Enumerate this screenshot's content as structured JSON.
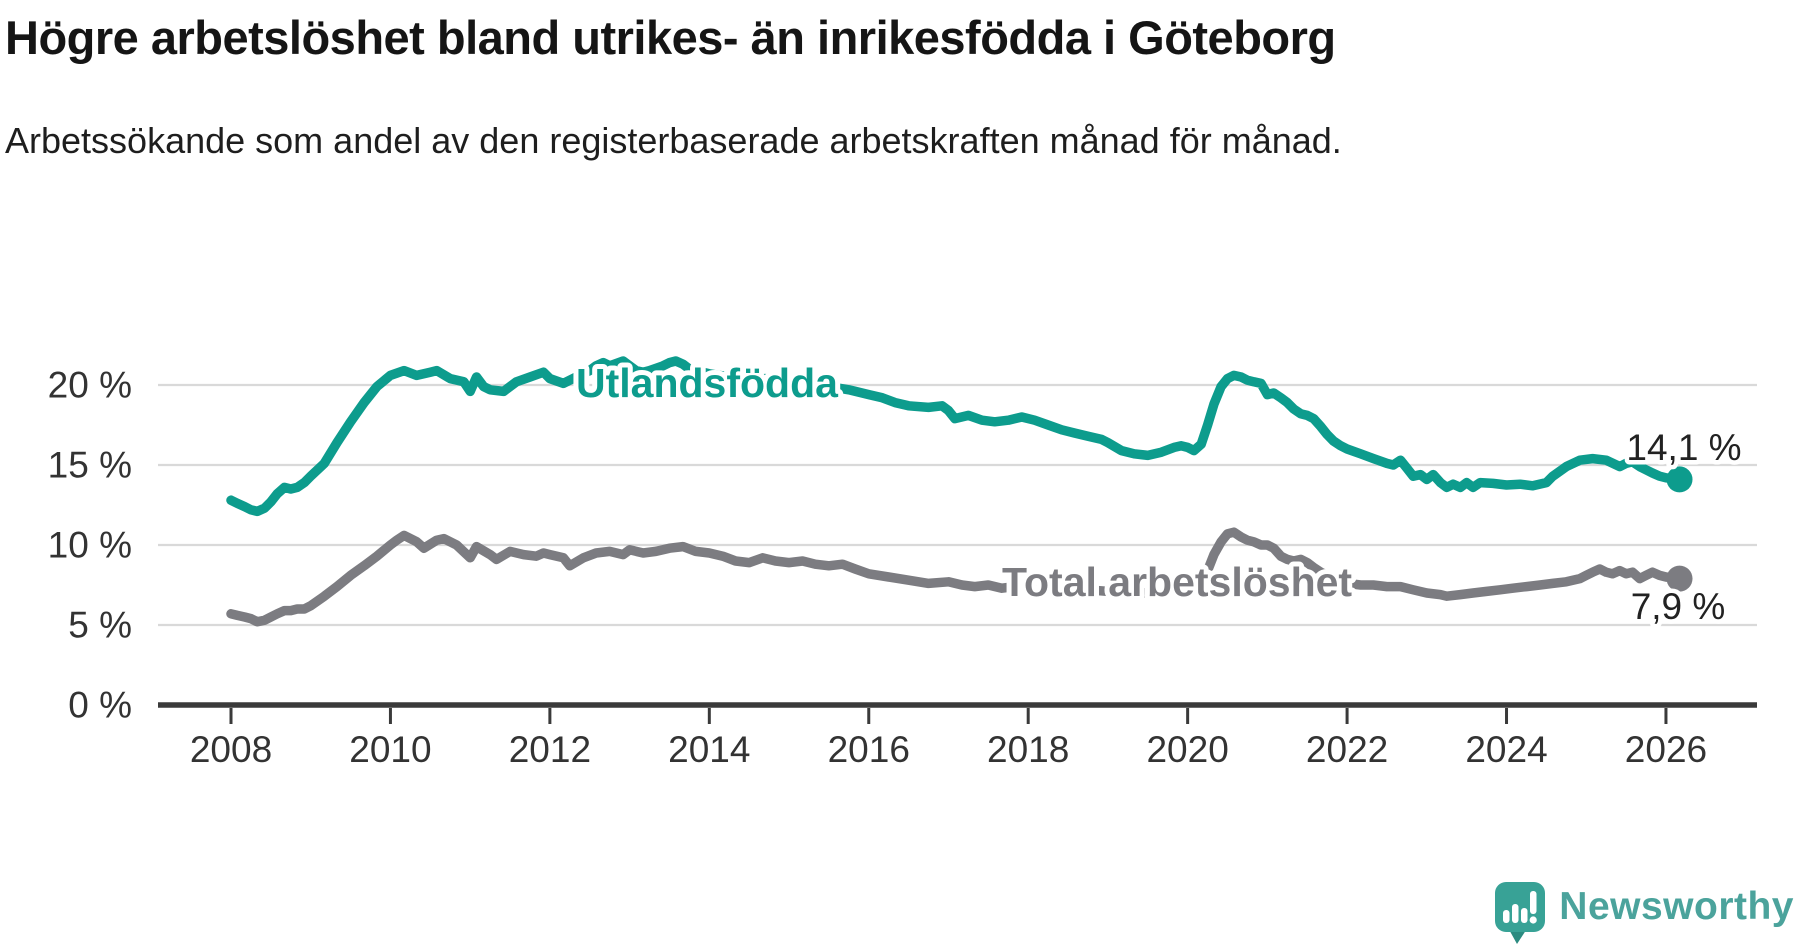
{
  "header": {
    "title": "Högre arbetslöshet bland utrikes- än inrikesfödda i Göteborg",
    "subtitle": "Arbetssökande som andel av den registerbaserade arbetskraften månad för månad."
  },
  "chart_data": {
    "type": "line",
    "unit": "%",
    "grid": "horizontal",
    "x_axis": {
      "ticks": [
        {
          "v": 2008,
          "label": "2008"
        },
        {
          "v": 2010,
          "label": "2010"
        },
        {
          "v": 2012,
          "label": "2012"
        },
        {
          "v": 2014,
          "label": "2014"
        },
        {
          "v": 2016,
          "label": "2016"
        },
        {
          "v": 2018,
          "label": "2018"
        },
        {
          "v": 2020,
          "label": "2020"
        },
        {
          "v": 2022,
          "label": "2022"
        },
        {
          "v": 2024,
          "label": "2024"
        },
        {
          "v": 2026,
          "label": "2026"
        }
      ],
      "range": [
        2007.1,
        2027.1
      ]
    },
    "y_axis": {
      "ticks": [
        {
          "v": 0,
          "label": "0 %"
        },
        {
          "v": 5,
          "label": "5 %"
        },
        {
          "v": 10,
          "label": "10 %"
        },
        {
          "v": 15,
          "label": "15 %"
        },
        {
          "v": 20,
          "label": "20 %"
        }
      ],
      "gridlines": [
        5,
        10,
        15,
        20
      ],
      "range": [
        0,
        22
      ]
    },
    "series": [
      {
        "name": "Utlandsfödda",
        "color": "#0d9c8d",
        "end_label": "14,1 %",
        "points": [
          [
            2008.0,
            12.8
          ],
          [
            2008.08,
            12.6
          ],
          [
            2008.17,
            12.4
          ],
          [
            2008.25,
            12.2
          ],
          [
            2008.33,
            12.1
          ],
          [
            2008.42,
            12.3
          ],
          [
            2008.5,
            12.7
          ],
          [
            2008.58,
            13.2
          ],
          [
            2008.67,
            13.6
          ],
          [
            2008.75,
            13.5
          ],
          [
            2008.83,
            13.6
          ],
          [
            2008.92,
            13.9
          ],
          [
            2009.0,
            14.3
          ],
          [
            2009.17,
            15.1
          ],
          [
            2009.33,
            16.4
          ],
          [
            2009.5,
            17.7
          ],
          [
            2009.67,
            18.9
          ],
          [
            2009.83,
            19.9
          ],
          [
            2010.0,
            20.6
          ],
          [
            2010.17,
            20.9
          ],
          [
            2010.33,
            20.6
          ],
          [
            2010.5,
            20.8
          ],
          [
            2010.58,
            20.9
          ],
          [
            2010.75,
            20.4
          ],
          [
            2010.92,
            20.2
          ],
          [
            2011.0,
            19.6
          ],
          [
            2011.08,
            20.5
          ],
          [
            2011.17,
            19.9
          ],
          [
            2011.25,
            19.7
          ],
          [
            2011.42,
            19.6
          ],
          [
            2011.58,
            20.2
          ],
          [
            2011.75,
            20.5
          ],
          [
            2011.92,
            20.8
          ],
          [
            2012.0,
            20.4
          ],
          [
            2012.17,
            20.1
          ],
          [
            2012.33,
            20.5
          ],
          [
            2012.5,
            20.9
          ],
          [
            2012.58,
            21.2
          ],
          [
            2012.67,
            21.4
          ],
          [
            2012.75,
            21.2
          ],
          [
            2012.92,
            21.5
          ],
          [
            2013.0,
            21.2
          ],
          [
            2013.08,
            20.9
          ],
          [
            2013.17,
            20.8
          ],
          [
            2013.25,
            20.9
          ],
          [
            2013.42,
            21.2
          ],
          [
            2013.5,
            21.4
          ],
          [
            2013.58,
            21.5
          ],
          [
            2013.67,
            21.3
          ],
          [
            2013.75,
            21.0
          ],
          [
            2013.83,
            20.9
          ],
          [
            2014.0,
            20.7
          ],
          [
            2014.25,
            20.5
          ],
          [
            2014.5,
            20.4
          ],
          [
            2014.75,
            20.4
          ],
          [
            2015.0,
            20.2
          ],
          [
            2015.25,
            20.0
          ],
          [
            2015.5,
            19.9
          ],
          [
            2015.75,
            19.7
          ],
          [
            2016.0,
            19.4
          ],
          [
            2016.17,
            19.2
          ],
          [
            2016.33,
            18.9
          ],
          [
            2016.5,
            18.7
          ],
          [
            2016.75,
            18.6
          ],
          [
            2016.92,
            18.7
          ],
          [
            2017.0,
            18.4
          ],
          [
            2017.08,
            17.9
          ],
          [
            2017.25,
            18.1
          ],
          [
            2017.42,
            17.8
          ],
          [
            2017.58,
            17.7
          ],
          [
            2017.75,
            17.8
          ],
          [
            2017.92,
            18.0
          ],
          [
            2018.08,
            17.8
          ],
          [
            2018.25,
            17.5
          ],
          [
            2018.42,
            17.2
          ],
          [
            2018.58,
            17.0
          ],
          [
            2018.75,
            16.8
          ],
          [
            2018.92,
            16.6
          ],
          [
            2019.0,
            16.4
          ],
          [
            2019.17,
            15.9
          ],
          [
            2019.33,
            15.7
          ],
          [
            2019.5,
            15.6
          ],
          [
            2019.67,
            15.8
          ],
          [
            2019.83,
            16.1
          ],
          [
            2019.92,
            16.2
          ],
          [
            2020.0,
            16.1
          ],
          [
            2020.08,
            15.9
          ],
          [
            2020.17,
            16.3
          ],
          [
            2020.25,
            17.5
          ],
          [
            2020.33,
            18.8
          ],
          [
            2020.42,
            19.9
          ],
          [
            2020.5,
            20.4
          ],
          [
            2020.58,
            20.6
          ],
          [
            2020.67,
            20.5
          ],
          [
            2020.75,
            20.3
          ],
          [
            2020.83,
            20.2
          ],
          [
            2020.92,
            20.1
          ],
          [
            2021.0,
            19.4
          ],
          [
            2021.08,
            19.5
          ],
          [
            2021.17,
            19.2
          ],
          [
            2021.25,
            18.9
          ],
          [
            2021.33,
            18.5
          ],
          [
            2021.42,
            18.2
          ],
          [
            2021.5,
            18.1
          ],
          [
            2021.58,
            17.9
          ],
          [
            2021.67,
            17.4
          ],
          [
            2021.75,
            16.9
          ],
          [
            2021.83,
            16.5
          ],
          [
            2021.92,
            16.2
          ],
          [
            2022.0,
            16.0
          ],
          [
            2022.17,
            15.7
          ],
          [
            2022.33,
            15.4
          ],
          [
            2022.5,
            15.1
          ],
          [
            2022.58,
            15.0
          ],
          [
            2022.67,
            15.3
          ],
          [
            2022.75,
            14.8
          ],
          [
            2022.83,
            14.3
          ],
          [
            2022.92,
            14.4
          ],
          [
            2023.0,
            14.1
          ],
          [
            2023.08,
            14.4
          ],
          [
            2023.17,
            13.9
          ],
          [
            2023.25,
            13.6
          ],
          [
            2023.33,
            13.8
          ],
          [
            2023.42,
            13.6
          ],
          [
            2023.5,
            13.9
          ],
          [
            2023.58,
            13.6
          ],
          [
            2023.67,
            13.9
          ],
          [
            2023.83,
            13.85
          ],
          [
            2024.0,
            13.75
          ],
          [
            2024.17,
            13.8
          ],
          [
            2024.33,
            13.7
          ],
          [
            2024.5,
            13.9
          ],
          [
            2024.58,
            14.3
          ],
          [
            2024.75,
            14.9
          ],
          [
            2024.92,
            15.3
          ],
          [
            2025.08,
            15.4
          ],
          [
            2025.25,
            15.3
          ],
          [
            2025.42,
            14.9
          ],
          [
            2025.5,
            15.1
          ],
          [
            2025.58,
            15.2
          ],
          [
            2025.67,
            14.9
          ],
          [
            2025.75,
            14.7
          ],
          [
            2025.83,
            14.5
          ],
          [
            2025.92,
            14.3
          ],
          [
            2026.0,
            14.2
          ],
          [
            2026.17,
            14.1
          ]
        ]
      },
      {
        "name": "Total arbetslöshet",
        "color": "#7c7c81",
        "end_label": "7,9 %",
        "points": [
          [
            2008.0,
            5.7
          ],
          [
            2008.08,
            5.6
          ],
          [
            2008.17,
            5.5
          ],
          [
            2008.25,
            5.4
          ],
          [
            2008.33,
            5.2
          ],
          [
            2008.42,
            5.3
          ],
          [
            2008.5,
            5.5
          ],
          [
            2008.58,
            5.7
          ],
          [
            2008.67,
            5.9
          ],
          [
            2008.75,
            5.9
          ],
          [
            2008.83,
            6.0
          ],
          [
            2008.92,
            6.0
          ],
          [
            2009.0,
            6.2
          ],
          [
            2009.17,
            6.8
          ],
          [
            2009.33,
            7.4
          ],
          [
            2009.5,
            8.1
          ],
          [
            2009.67,
            8.7
          ],
          [
            2009.83,
            9.3
          ],
          [
            2010.0,
            10.0
          ],
          [
            2010.08,
            10.3
          ],
          [
            2010.17,
            10.6
          ],
          [
            2010.33,
            10.2
          ],
          [
            2010.42,
            9.8
          ],
          [
            2010.58,
            10.3
          ],
          [
            2010.67,
            10.4
          ],
          [
            2010.83,
            10.0
          ],
          [
            2011.0,
            9.2
          ],
          [
            2011.08,
            9.9
          ],
          [
            2011.25,
            9.4
          ],
          [
            2011.33,
            9.1
          ],
          [
            2011.5,
            9.6
          ],
          [
            2011.67,
            9.4
          ],
          [
            2011.83,
            9.3
          ],
          [
            2011.92,
            9.5
          ],
          [
            2012.0,
            9.4
          ],
          [
            2012.17,
            9.2
          ],
          [
            2012.25,
            8.7
          ],
          [
            2012.42,
            9.2
          ],
          [
            2012.58,
            9.5
          ],
          [
            2012.75,
            9.6
          ],
          [
            2012.92,
            9.4
          ],
          [
            2013.0,
            9.7
          ],
          [
            2013.17,
            9.5
          ],
          [
            2013.33,
            9.6
          ],
          [
            2013.5,
            9.8
          ],
          [
            2013.67,
            9.9
          ],
          [
            2013.83,
            9.6
          ],
          [
            2014.0,
            9.5
          ],
          [
            2014.17,
            9.3
          ],
          [
            2014.33,
            9.0
          ],
          [
            2014.5,
            8.9
          ],
          [
            2014.67,
            9.2
          ],
          [
            2014.83,
            9.0
          ],
          [
            2015.0,
            8.9
          ],
          [
            2015.17,
            9.0
          ],
          [
            2015.33,
            8.8
          ],
          [
            2015.5,
            8.7
          ],
          [
            2015.67,
            8.8
          ],
          [
            2015.83,
            8.5
          ],
          [
            2016.0,
            8.2
          ],
          [
            2016.25,
            8.0
          ],
          [
            2016.5,
            7.8
          ],
          [
            2016.75,
            7.6
          ],
          [
            2017.0,
            7.7
          ],
          [
            2017.17,
            7.5
          ],
          [
            2017.33,
            7.4
          ],
          [
            2017.5,
            7.5
          ],
          [
            2017.67,
            7.3
          ],
          [
            2017.83,
            7.4
          ],
          [
            2018.0,
            7.3
          ],
          [
            2018.25,
            7.3
          ],
          [
            2018.5,
            7.2
          ],
          [
            2018.75,
            7.2
          ],
          [
            2019.0,
            7.1
          ],
          [
            2019.25,
            7.1
          ],
          [
            2019.5,
            7.0
          ],
          [
            2019.75,
            7.1
          ],
          [
            2020.0,
            7.2
          ],
          [
            2020.08,
            7.3
          ],
          [
            2020.17,
            7.6
          ],
          [
            2020.25,
            8.4
          ],
          [
            2020.33,
            9.4
          ],
          [
            2020.42,
            10.2
          ],
          [
            2020.5,
            10.7
          ],
          [
            2020.58,
            10.8
          ],
          [
            2020.67,
            10.5
          ],
          [
            2020.75,
            10.3
          ],
          [
            2020.83,
            10.2
          ],
          [
            2020.92,
            10.0
          ],
          [
            2021.0,
            10.0
          ],
          [
            2021.08,
            9.8
          ],
          [
            2021.17,
            9.3
          ],
          [
            2021.25,
            9.1
          ],
          [
            2021.33,
            9.0
          ],
          [
            2021.42,
            9.1
          ],
          [
            2021.5,
            8.9
          ],
          [
            2021.58,
            8.6
          ],
          [
            2021.67,
            8.3
          ],
          [
            2021.75,
            8.1
          ],
          [
            2021.83,
            7.9
          ],
          [
            2021.92,
            7.7
          ],
          [
            2022.0,
            7.6
          ],
          [
            2022.17,
            7.5
          ],
          [
            2022.33,
            7.5
          ],
          [
            2022.5,
            7.4
          ],
          [
            2022.67,
            7.4
          ],
          [
            2022.83,
            7.2
          ],
          [
            2023.0,
            7.0
          ],
          [
            2023.17,
            6.9
          ],
          [
            2023.25,
            6.8
          ],
          [
            2023.42,
            6.9
          ],
          [
            2023.58,
            7.0
          ],
          [
            2023.75,
            7.1
          ],
          [
            2023.92,
            7.2
          ],
          [
            2024.08,
            7.3
          ],
          [
            2024.25,
            7.4
          ],
          [
            2024.42,
            7.5
          ],
          [
            2024.58,
            7.6
          ],
          [
            2024.75,
            7.7
          ],
          [
            2024.92,
            7.9
          ],
          [
            2025.0,
            8.1
          ],
          [
            2025.08,
            8.3
          ],
          [
            2025.17,
            8.5
          ],
          [
            2025.25,
            8.3
          ],
          [
            2025.33,
            8.2
          ],
          [
            2025.42,
            8.4
          ],
          [
            2025.5,
            8.2
          ],
          [
            2025.58,
            8.3
          ],
          [
            2025.67,
            7.9
          ],
          [
            2025.75,
            8.1
          ],
          [
            2025.83,
            8.3
          ],
          [
            2025.92,
            8.1
          ],
          [
            2026.0,
            8.0
          ],
          [
            2026.17,
            7.9
          ]
        ]
      }
    ],
    "colors": {
      "gridline": "#d9d9d9",
      "axis": "#3a3a3a",
      "tick_label": "#333333",
      "value_label": "#222222"
    }
  },
  "footer": {
    "brand": "Newsworthy",
    "brand_color": "#4ba39c",
    "icon_color": "#38a296",
    "icon_tail_color": "#2b8b80"
  }
}
